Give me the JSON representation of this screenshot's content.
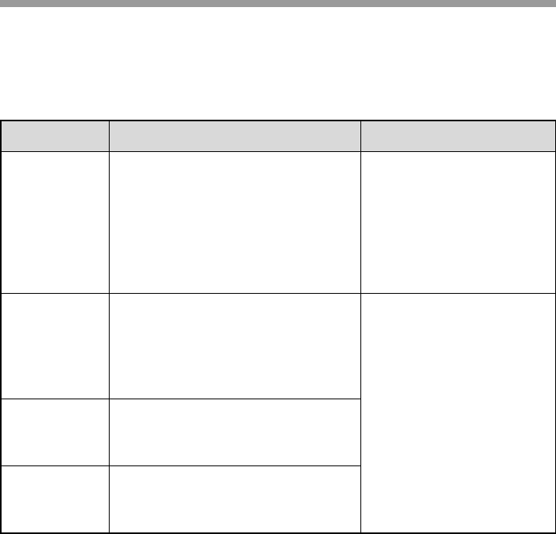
{
  "colors": {
    "top_bar": "#9a9a9a",
    "header_fill": "#d9d9d9",
    "border": "#000000"
  },
  "table": {
    "headers": [
      "",
      "",
      ""
    ],
    "rows": [
      [
        "",
        "",
        ""
      ],
      [
        "",
        "",
        ""
      ],
      [
        "",
        ""
      ],
      [
        "",
        ""
      ]
    ]
  }
}
